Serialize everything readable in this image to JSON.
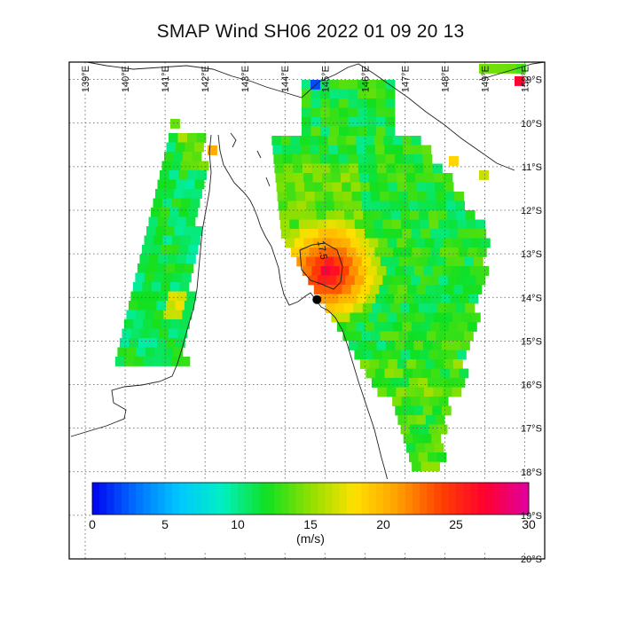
{
  "title": "SMAP Wind  SH06  2022 01 09 20 13",
  "map": {
    "lon_labels": [
      "139°E",
      "140°E",
      "141°E",
      "142°E",
      "143°E",
      "144°E",
      "145°E",
      "146°E",
      "147°E",
      "148°E",
      "149°E",
      "150°E"
    ],
    "lat_labels": [
      "9°S",
      "10°S",
      "11°S",
      "12°S",
      "13°S",
      "14°S",
      "15°S",
      "16°S",
      "17°S",
      "18°S",
      "19°S",
      "20°S"
    ],
    "lon_range": [
      138.6,
      150.5
    ],
    "lat_range": [
      -20.0,
      -8.6
    ],
    "grid": true,
    "contour_label": "17.5",
    "storm_center": {
      "lon": 144.8,
      "lat": -14.05
    }
  },
  "colorbar": {
    "min": 0,
    "max": 30,
    "tick_labels": [
      "0",
      "5",
      "10",
      "15",
      "20",
      "25",
      "30"
    ],
    "unit": "(m/s)",
    "colors": [
      "#0000f0",
      "#0070ff",
      "#00c8ff",
      "#00f0c0",
      "#10e020",
      "#90e000",
      "#ffe000",
      "#ffa000",
      "#ff4000",
      "#ff0030",
      "#e000a0"
    ]
  }
}
